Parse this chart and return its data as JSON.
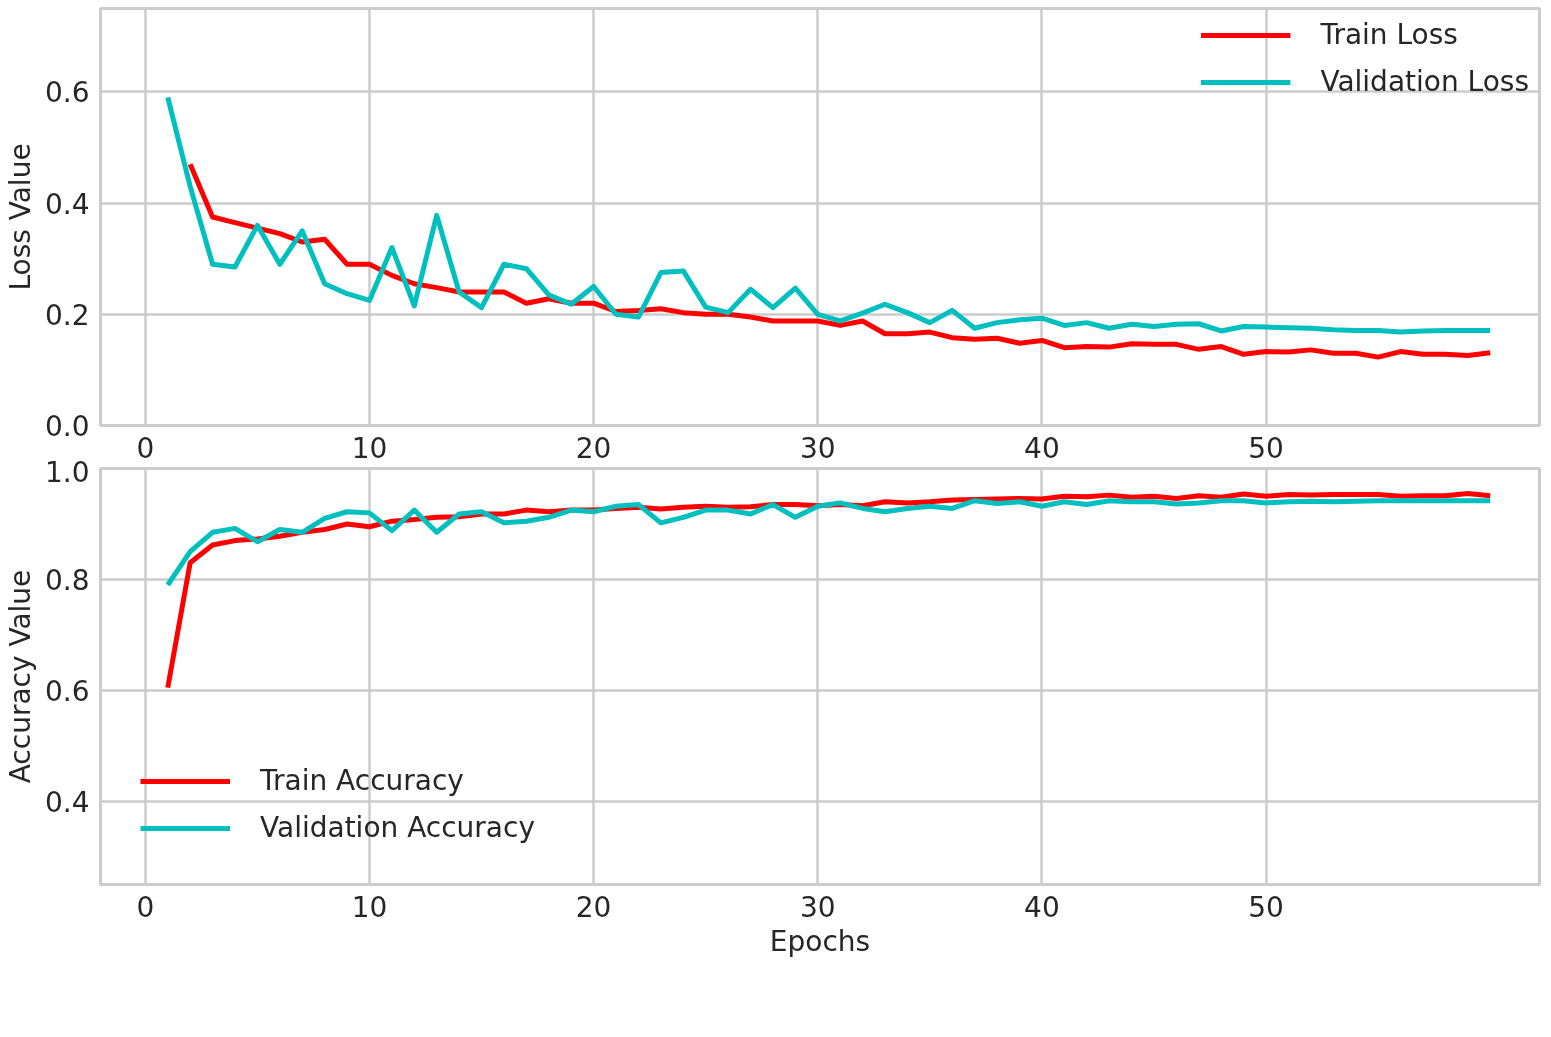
{
  "chart_data": [
    {
      "type": "line",
      "ylabel": "Loss Value",
      "x": [
        1,
        2,
        3,
        4,
        5,
        6,
        7,
        8,
        9,
        10,
        11,
        12,
        13,
        14,
        15,
        16,
        17,
        18,
        19,
        20,
        21,
        22,
        23,
        24,
        25,
        26,
        27,
        28,
        29,
        30,
        31,
        32,
        33,
        34,
        35,
        36,
        37,
        38,
        39,
        40,
        41,
        42,
        43,
        44,
        45,
        46,
        47,
        48,
        49,
        50,
        51,
        52,
        53,
        54,
        55,
        56,
        57,
        58,
        59,
        60
      ],
      "series": [
        {
          "name": "Train Loss",
          "color": "#ff0000",
          "values": [
            null,
            0.47,
            0.375,
            0.365,
            0.355,
            0.345,
            0.33,
            0.335,
            0.29,
            0.29,
            0.27,
            0.255,
            0.248,
            0.24,
            0.24,
            0.24,
            0.22,
            0.228,
            0.22,
            0.22,
            0.205,
            0.207,
            0.21,
            0.203,
            0.2,
            0.2,
            0.195,
            0.188,
            0.188,
            0.188,
            0.18,
            0.188,
            0.165,
            0.165,
            0.168,
            0.158,
            0.155,
            0.157,
            0.148,
            0.153,
            0.14,
            0.142,
            0.141,
            0.147,
            0.146,
            0.146,
            0.137,
            0.142,
            0.128,
            0.133,
            0.132,
            0.136,
            0.13,
            0.13,
            0.123,
            0.133,
            0.128,
            0.128,
            0.126,
            0.131
          ]
        },
        {
          "name": "Validation Loss",
          "color": "#00bfbf",
          "values": [
            0.59,
            0.43,
            0.29,
            0.285,
            0.36,
            0.29,
            0.35,
            0.255,
            0.237,
            0.225,
            0.32,
            0.215,
            0.378,
            0.24,
            0.212,
            0.29,
            0.282,
            0.235,
            0.218,
            0.25,
            0.2,
            0.195,
            0.275,
            0.278,
            0.213,
            0.203,
            0.245,
            0.212,
            0.247,
            0.2,
            0.188,
            0.202,
            0.218,
            0.203,
            0.185,
            0.207,
            0.175,
            0.185,
            0.19,
            0.193,
            0.18,
            0.185,
            0.175,
            0.182,
            0.178,
            0.182,
            0.183,
            0.17,
            0.178,
            0.177,
            0.176,
            0.175,
            0.172,
            0.171,
            0.171,
            0.168,
            0.17,
            0.171,
            0.171,
            0.171
          ]
        }
      ],
      "xlim": [
        -2,
        62.2
      ],
      "xticks": [
        0,
        10,
        20,
        30,
        40,
        50
      ],
      "ylim": [
        0,
        0.75
      ],
      "yticks": [
        {
          "value": 0,
          "label": "0.0"
        },
        0.2,
        0.4,
        0.6
      ],
      "grid": true,
      "legend": "top right"
    },
    {
      "type": "line",
      "xlabel": "Epochs",
      "ylabel": "Accuracy Value",
      "x": [
        1,
        2,
        3,
        4,
        5,
        6,
        7,
        8,
        9,
        10,
        11,
        12,
        13,
        14,
        15,
        16,
        17,
        18,
        19,
        20,
        21,
        22,
        23,
        24,
        25,
        26,
        27,
        28,
        29,
        30,
        31,
        32,
        33,
        34,
        35,
        36,
        37,
        38,
        39,
        40,
        41,
        42,
        43,
        44,
        45,
        46,
        47,
        48,
        49,
        50,
        51,
        52,
        53,
        54,
        55,
        56,
        57,
        58,
        59,
        60
      ],
      "series": [
        {
          "name": "Train Accuracy",
          "color": "#ff0000",
          "values": [
            0.605,
            0.83,
            0.862,
            0.87,
            0.873,
            0.878,
            0.885,
            0.89,
            0.9,
            0.895,
            0.905,
            0.908,
            0.912,
            0.913,
            0.918,
            0.918,
            0.925,
            0.922,
            0.925,
            0.925,
            0.928,
            0.93,
            0.927,
            0.93,
            0.932,
            0.93,
            0.931,
            0.935,
            0.935,
            0.933,
            0.935,
            0.933,
            0.94,
            0.938,
            0.94,
            0.943,
            0.944,
            0.945,
            0.946,
            0.945,
            0.95,
            0.949,
            0.952,
            0.948,
            0.95,
            0.946,
            0.951,
            0.948,
            0.954,
            0.95,
            0.953,
            0.952,
            0.953,
            0.953,
            0.953,
            0.95,
            0.951,
            0.951,
            0.955,
            0.951
          ]
        },
        {
          "name": "Validation Accuracy",
          "color": "#00bfbf",
          "values": [
            0.79,
            0.85,
            0.885,
            0.892,
            0.868,
            0.89,
            0.885,
            0.91,
            0.922,
            0.92,
            0.888,
            0.925,
            0.885,
            0.918,
            0.922,
            0.902,
            0.905,
            0.912,
            0.925,
            0.922,
            0.932,
            0.935,
            0.902,
            0.912,
            0.925,
            0.925,
            0.918,
            0.935,
            0.912,
            0.932,
            0.938,
            0.928,
            0.922,
            0.928,
            0.932,
            0.928,
            0.942,
            0.937,
            0.94,
            0.932,
            0.94,
            0.935,
            0.942,
            0.94,
            0.94,
            0.936,
            0.938,
            0.942,
            0.942,
            0.938,
            0.94,
            0.941,
            0.94,
            0.941,
            0.942,
            0.942,
            0.942,
            0.942,
            0.942,
            0.942
          ]
        }
      ],
      "xlim": [
        -2,
        62.2
      ],
      "xticks": [
        0,
        10,
        20,
        30,
        40,
        50
      ],
      "ylim": [
        0.25,
        1.0
      ],
      "yticks": [
        0.4,
        0.6,
        0.8,
        {
          "value": 1.0,
          "label": "1.0"
        }
      ],
      "grid": true,
      "legend": "bottom left"
    }
  ]
}
